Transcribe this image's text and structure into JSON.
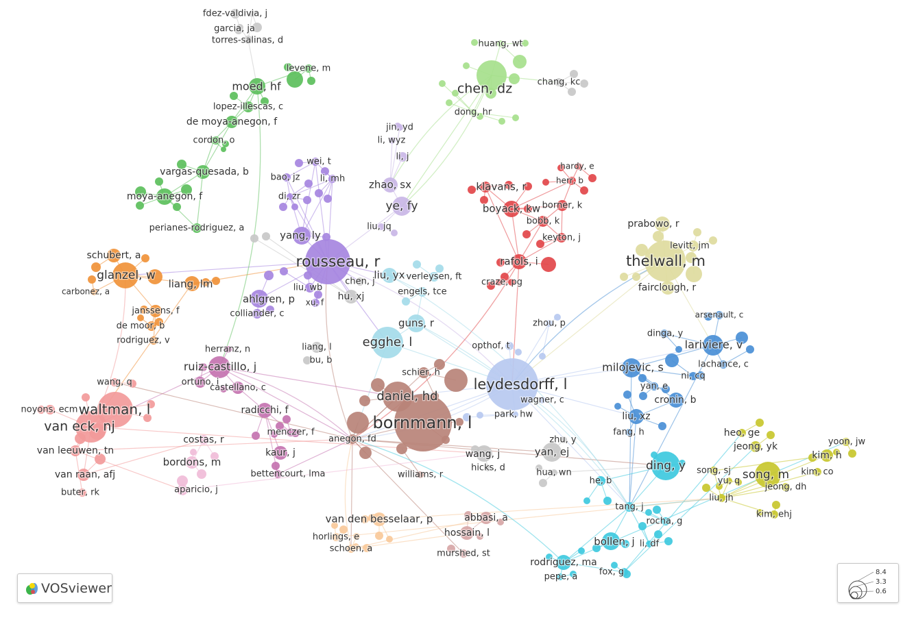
{
  "app": {
    "name": "VOSviewer"
  },
  "legend": {
    "values": [
      "8.4",
      "3.3",
      "0.6"
    ]
  },
  "colors": {
    "green": "#5cbf5c",
    "lightgreen": "#a6e08c",
    "gray": "#c8c8c8",
    "purple": "#a685e0",
    "lavender": "#c9b6e6",
    "red": "#e2474a",
    "orange": "#f0923a",
    "yellow": "#dedb9e",
    "lightblue": "#a4dbe9",
    "brown": "#b98378",
    "blue": "#4a8fd6",
    "periwinkle": "#b7c9f0",
    "pink": "#f29a9a",
    "magenta": "#c473b0",
    "lightpink": "#f0bcd8",
    "peach": "#f8c99a",
    "cyan": "#3ec9de",
    "olive": "#c8c72e",
    "dustyrose": "#d7a6a6"
  },
  "nodes": [
    {
      "label": "fdez-valdivia, j",
      "color": "gray"
    },
    {
      "label": "garcia, ja",
      "color": "gray"
    },
    {
      "label": "torres-salinas, d",
      "color": "gray"
    },
    {
      "label": "levene, m",
      "color": "green"
    },
    {
      "label": "moed, hf",
      "color": "green"
    },
    {
      "label": "lopez-illescas, c",
      "color": "green"
    },
    {
      "label": "de moya-anegon, f",
      "color": "green"
    },
    {
      "label": "cordon, o",
      "color": "green"
    },
    {
      "label": "vargas-quesada, b",
      "color": "green"
    },
    {
      "label": "moya-anegon, f",
      "color": "green"
    },
    {
      "label": "perianes-rodriguez, a",
      "color": "green"
    },
    {
      "label": "huang, wt",
      "color": "lightgreen"
    },
    {
      "label": "chen, dz",
      "color": "lightgreen"
    },
    {
      "label": "chang, kc",
      "color": "gray"
    },
    {
      "label": "dong, hr",
      "color": "lightgreen"
    },
    {
      "label": "jin, yd",
      "color": "lavender"
    },
    {
      "label": "li, wyz",
      "color": "lavender"
    },
    {
      "label": "li, j",
      "color": "lavender"
    },
    {
      "label": "zhao, sx",
      "color": "lavender"
    },
    {
      "label": "ye, fy",
      "color": "lavender"
    },
    {
      "label": "liu, jq",
      "color": "lavender"
    },
    {
      "label": "wei, t",
      "color": "purple"
    },
    {
      "label": "bao, jz",
      "color": "purple"
    },
    {
      "label": "li, mh",
      "color": "purple"
    },
    {
      "label": "di, zr",
      "color": "purple"
    },
    {
      "label": "yang, ly",
      "color": "purple"
    },
    {
      "label": "rousseau, r",
      "color": "purple"
    },
    {
      "label": "liu, wb",
      "color": "purple"
    },
    {
      "label": "xu, f",
      "color": "purple"
    },
    {
      "label": "ahlgren, p",
      "color": "purple"
    },
    {
      "label": "colliander, c",
      "color": "purple"
    },
    {
      "label": "chen, j",
      "color": "gray"
    },
    {
      "label": "hu, xj",
      "color": "gray"
    },
    {
      "label": "liang, l",
      "color": "gray"
    },
    {
      "label": "bu, b",
      "color": "gray"
    },
    {
      "label": "liu, yx",
      "color": "lightblue"
    },
    {
      "label": "verleysen, ft",
      "color": "lightblue"
    },
    {
      "label": "engels, tce",
      "color": "lightblue"
    },
    {
      "label": "guns, r",
      "color": "lightblue"
    },
    {
      "label": "egghe, l",
      "color": "lightblue"
    },
    {
      "label": "hardy, e",
      "color": "red"
    },
    {
      "label": "herr, b",
      "color": "red"
    },
    {
      "label": "klavans, r",
      "color": "red"
    },
    {
      "label": "boyack, kw",
      "color": "red"
    },
    {
      "label": "borner, k",
      "color": "red"
    },
    {
      "label": "bobb, k",
      "color": "red"
    },
    {
      "label": "keyton, j",
      "color": "red"
    },
    {
      "label": "rafols, i",
      "color": "red"
    },
    {
      "label": "craze, pg",
      "color": "red"
    },
    {
      "label": "prabowo, r",
      "color": "yellow"
    },
    {
      "label": "levitt, jm",
      "color": "yellow"
    },
    {
      "label": "thelwall, m",
      "color": "yellow"
    },
    {
      "label": "fairclough, r",
      "color": "yellow"
    },
    {
      "label": "schubert, a",
      "color": "orange"
    },
    {
      "label": "glanzel, w",
      "color": "orange"
    },
    {
      "label": "carbonez, a",
      "color": "orange"
    },
    {
      "label": "liang, lm",
      "color": "orange"
    },
    {
      "label": "janssens, f",
      "color": "orange"
    },
    {
      "label": "de moor, b",
      "color": "orange"
    },
    {
      "label": "rodriguez, v",
      "color": "orange"
    },
    {
      "label": "zhou, p",
      "color": "periwinkle"
    },
    {
      "label": "opthof, t",
      "color": "periwinkle"
    },
    {
      "label": "leydesdorff, l",
      "color": "periwinkle"
    },
    {
      "label": "wagner, c",
      "color": "periwinkle"
    },
    {
      "label": "park, hw",
      "color": "periwinkle"
    },
    {
      "label": "arsenault, c",
      "color": "blue"
    },
    {
      "label": "dinga, y",
      "color": "blue"
    },
    {
      "label": "lariviere, v",
      "color": "blue"
    },
    {
      "label": "lachance, c",
      "color": "blue"
    },
    {
      "label": "milojevic, s",
      "color": "blue"
    },
    {
      "label": "ni, cq",
      "color": "blue"
    },
    {
      "label": "yan, e",
      "color": "blue"
    },
    {
      "label": "cronin, b",
      "color": "blue"
    },
    {
      "label": "liu, xz",
      "color": "blue"
    },
    {
      "label": "fang, h",
      "color": "blue"
    },
    {
      "label": "herranz, n",
      "color": "magenta"
    },
    {
      "label": "ruiz-castillo, j",
      "color": "magenta"
    },
    {
      "label": "ortuno, i",
      "color": "magenta"
    },
    {
      "label": "castellano, c",
      "color": "magenta"
    },
    {
      "label": "radicchi, f",
      "color": "magenta"
    },
    {
      "label": "menczer, f",
      "color": "magenta"
    },
    {
      "label": "kaur, j",
      "color": "magenta"
    },
    {
      "label": "bettencourt, lma",
      "color": "magenta"
    },
    {
      "label": "schier, h",
      "color": "brown"
    },
    {
      "label": "daniel, hd",
      "color": "brown"
    },
    {
      "label": "bornmann, l",
      "color": "brown"
    },
    {
      "label": "anegon, fd",
      "color": "brown"
    },
    {
      "label": "williams, r",
      "color": "brown"
    },
    {
      "label": "wang, q",
      "color": "pink"
    },
    {
      "label": "noyons, ecm",
      "color": "pink"
    },
    {
      "label": "waltman, l",
      "color": "pink"
    },
    {
      "label": "van eck, nj",
      "color": "pink"
    },
    {
      "label": "van leeuwen, tn",
      "color": "pink"
    },
    {
      "label": "van raan, afj",
      "color": "pink"
    },
    {
      "label": "buter, rk",
      "color": "pink"
    },
    {
      "label": "costas, r",
      "color": "lightpink"
    },
    {
      "label": "bordons, m",
      "color": "lightpink"
    },
    {
      "label": "aparicio, j",
      "color": "lightpink"
    },
    {
      "label": "wang, j",
      "color": "gray"
    },
    {
      "label": "hicks, d",
      "color": "gray"
    },
    {
      "label": "zhu, y",
      "color": "gray"
    },
    {
      "label": "yan, ej",
      "color": "gray"
    },
    {
      "label": "hua, wn",
      "color": "gray"
    },
    {
      "label": "ding, y",
      "color": "cyan"
    },
    {
      "label": "he, b",
      "color": "cyan"
    },
    {
      "label": "tang, j",
      "color": "cyan"
    },
    {
      "label": "rocha, g",
      "color": "cyan"
    },
    {
      "label": "bollen, j",
      "color": "cyan"
    },
    {
      "label": "li, df",
      "color": "cyan"
    },
    {
      "label": "rodriguez, ma",
      "color": "cyan"
    },
    {
      "label": "pepe, a",
      "color": "cyan"
    },
    {
      "label": "fox, g",
      "color": "cyan"
    },
    {
      "label": "heo, ge",
      "color": "olive"
    },
    {
      "label": "jeong, yk",
      "color": "olive"
    },
    {
      "label": "yoon, jw",
      "color": "olive"
    },
    {
      "label": "kim, h",
      "color": "olive"
    },
    {
      "label": "song, sj",
      "color": "olive"
    },
    {
      "label": "yu, q",
      "color": "olive"
    },
    {
      "label": "song, m",
      "color": "olive"
    },
    {
      "label": "kim, co",
      "color": "olive"
    },
    {
      "label": "jeong, dh",
      "color": "olive"
    },
    {
      "label": "liu, jh",
      "color": "olive"
    },
    {
      "label": "kim, ehj",
      "color": "olive"
    },
    {
      "label": "van den besselaar, p",
      "color": "peach"
    },
    {
      "label": "horlings, e",
      "color": "peach"
    },
    {
      "label": "schoen, a",
      "color": "peach"
    },
    {
      "label": "abbasi, a",
      "color": "dustyrose"
    },
    {
      "label": "hossain, l",
      "color": "dustyrose"
    },
    {
      "label": "murshed, st",
      "color": "dustyrose"
    }
  ]
}
